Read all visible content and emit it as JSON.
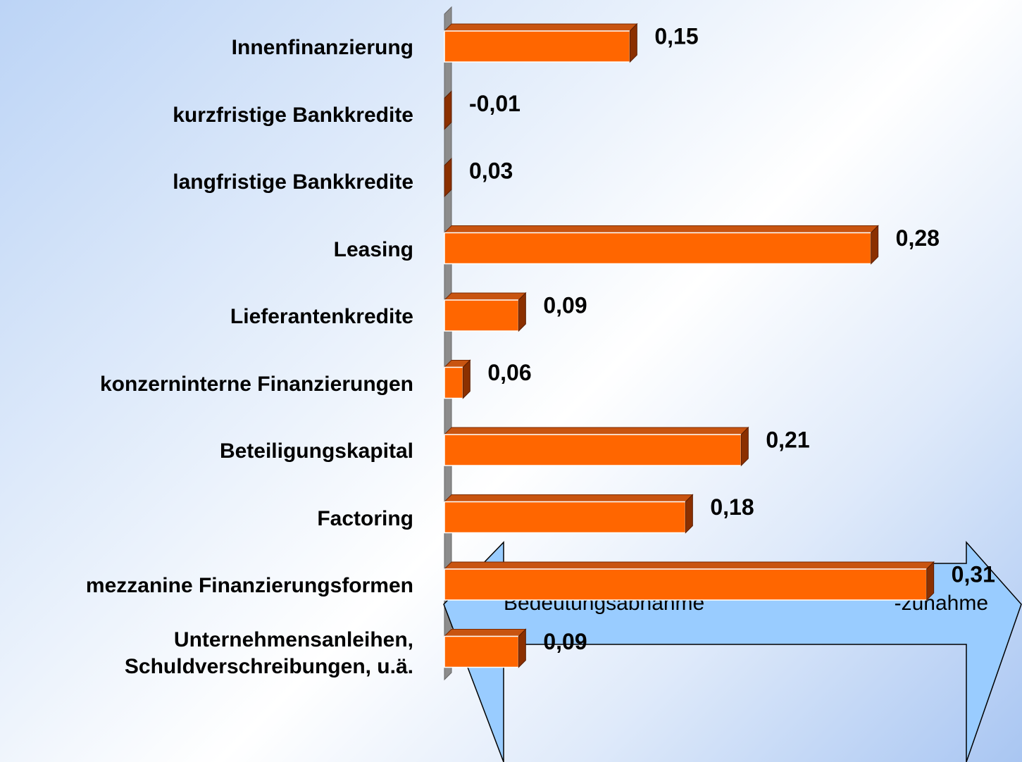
{
  "chart_data": {
    "type": "bar",
    "orientation": "horizontal",
    "categories": [
      "Innenfinanzierung",
      "kurzfristige Bankkredite",
      "langfristige Bankkredite",
      "Leasing",
      "Lieferantenkredite",
      "konzerninterne Finanzierungen",
      "Beteiligungskapital",
      "Factoring",
      "mezzanine Finanzierungsformen",
      "Unternehmensanleihen,\nSchuldverschreibungen, u.ä."
    ],
    "values": [
      0.15,
      -0.01,
      0.03,
      0.28,
      0.09,
      0.06,
      0.21,
      0.18,
      0.31,
      0.09
    ],
    "value_labels": [
      "0,15",
      "-0,01",
      "0,03",
      "0,28",
      "0,09",
      "0,06",
      "0,21",
      "0,18",
      "0,31",
      "0,09"
    ],
    "color": "#ff6600",
    "xlim": [
      0.05,
      0.35
    ],
    "annotations": [
      "Bedeutungsabnahme",
      "-zunahme"
    ]
  }
}
